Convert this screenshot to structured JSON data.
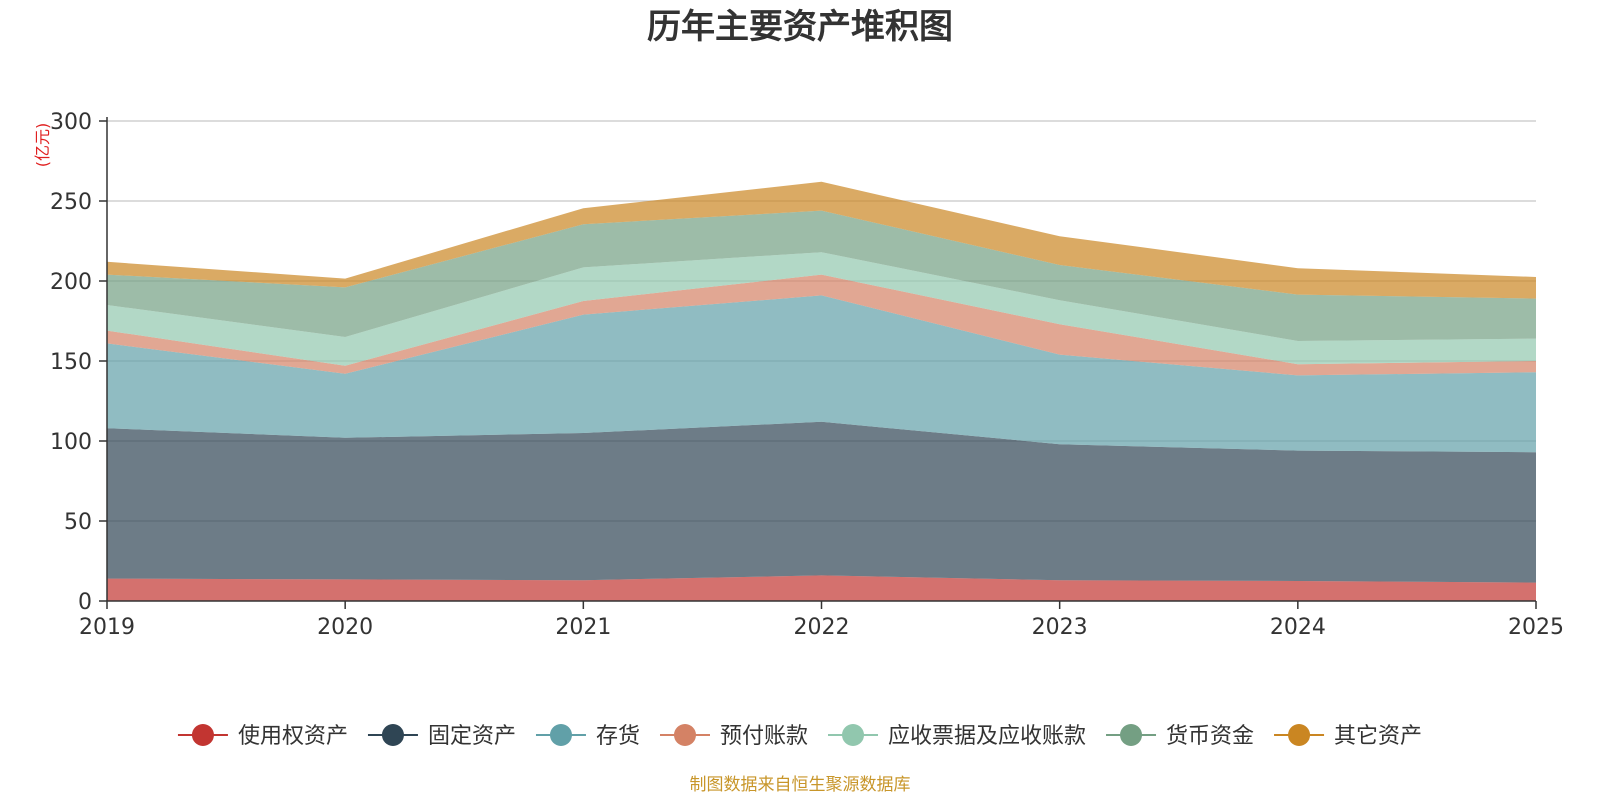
{
  "chart_data": {
    "type": "area",
    "stacked": true,
    "title": "历年主要资产堆积图",
    "unit_label": "(亿元)",
    "x": [
      "2019",
      "2020",
      "2021",
      "2022",
      "2023",
      "2024",
      "2025"
    ],
    "ylim": [
      0,
      300
    ],
    "yticks": [
      0,
      50,
      100,
      150,
      200,
      250,
      300
    ],
    "grid": true,
    "legend_position": "bottom",
    "source": "制图数据来自恒生聚源数据库",
    "series": [
      {
        "name": "使用权资产",
        "color": "#c23531",
        "values": [
          14,
          13.5,
          13,
          16,
          13,
          12.5,
          11.5
        ]
      },
      {
        "name": "固定资产",
        "color": "#2f4554",
        "values": [
          94,
          88.5,
          92,
          96,
          85,
          81.5,
          81.5
        ]
      },
      {
        "name": "存货",
        "color": "#61a0a8",
        "values": [
          53,
          40,
          74,
          79,
          56,
          47,
          50
        ]
      },
      {
        "name": "预付账款",
        "color": "#d48265",
        "values": [
          8,
          5,
          8.5,
          13,
          19,
          7,
          7
        ]
      },
      {
        "name": "应收票据及应收账款",
        "color": "#91c7ae",
        "values": [
          16,
          18,
          21,
          14,
          15,
          14.5,
          14
        ]
      },
      {
        "name": "货币资金",
        "color": "#749f83",
        "values": [
          19,
          31,
          27,
          26,
          22,
          29,
          25
        ]
      },
      {
        "name": "其它资产",
        "color": "#ca8622",
        "values": [
          8,
          5.5,
          10,
          18,
          18,
          16.5,
          13.5
        ]
      }
    ]
  }
}
